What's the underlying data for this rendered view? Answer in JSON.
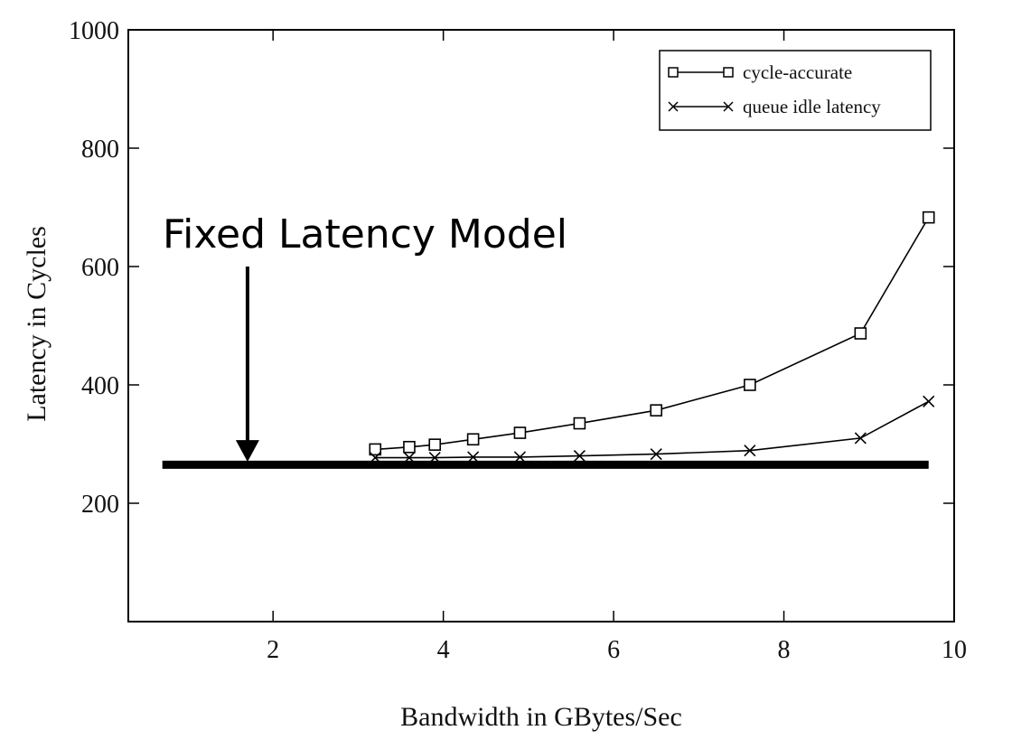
{
  "chart_data": {
    "type": "line",
    "title": "",
    "xlabel": "Bandwidth in GBytes/Sec",
    "ylabel": "Latency in Cycles",
    "xlim": [
      0.3,
      10
    ],
    "ylim": [
      0,
      1000
    ],
    "xticks": [
      2,
      4,
      6,
      8,
      10
    ],
    "yticks": [
      200,
      400,
      600,
      800,
      1000
    ],
    "grid": false,
    "legend_position": "top-right",
    "series": [
      {
        "name": "cycle-accurate",
        "marker": "square",
        "color": "#000000",
        "x": [
          3.2,
          3.6,
          3.9,
          4.35,
          4.9,
          5.6,
          6.5,
          7.6,
          8.9,
          9.7
        ],
        "y": [
          291,
          295,
          299,
          308,
          319,
          335,
          357,
          400,
          487,
          683
        ]
      },
      {
        "name": "queue idle latency",
        "marker": "x",
        "color": "#000000",
        "x": [
          3.2,
          3.6,
          3.9,
          4.35,
          4.9,
          5.6,
          6.5,
          7.6,
          8.9,
          9.7
        ],
        "y": [
          277,
          277,
          277,
          278,
          278,
          280,
          283,
          289,
          310,
          372
        ]
      }
    ],
    "reference_line": {
      "y": 265,
      "x_start": 0.7,
      "x_end": 9.7
    },
    "annotation": {
      "text": "Fixed Latency Model",
      "arrow_x": 1.7,
      "arrow_y_top": 600,
      "arrow_y_bottom": 270
    }
  }
}
